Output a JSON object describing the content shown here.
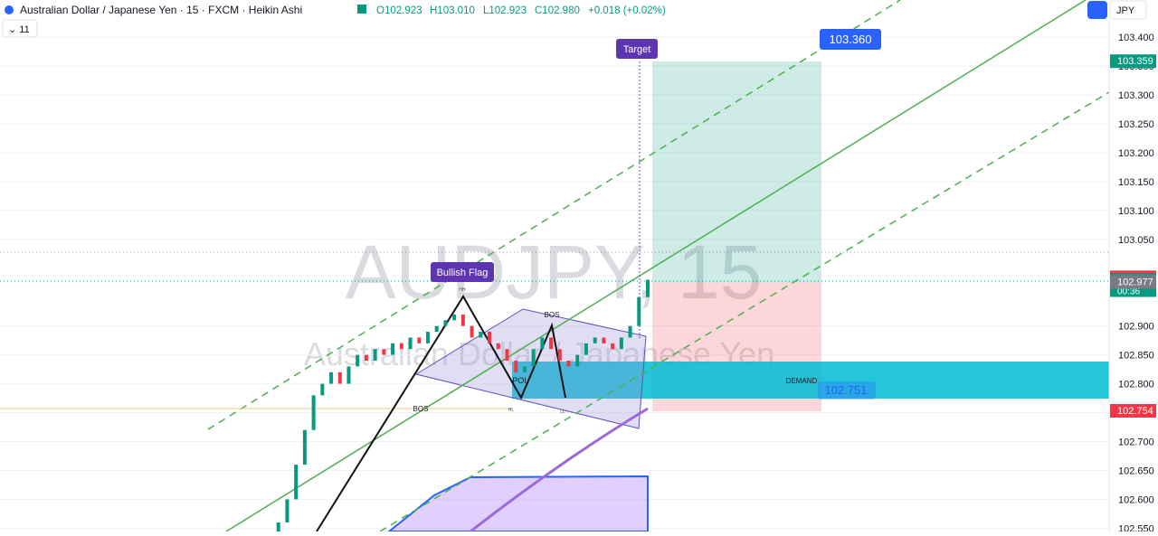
{
  "header": {
    "symbol": "Australian Dollar / Japanese Yen · 15 · FXCM · Heikin Ashi",
    "open": "O102.923",
    "high": "H103.010",
    "low": "L102.923",
    "close": "C102.980",
    "change": "+0.018 (+0.02%)",
    "indicators": "11",
    "currency": "JPY"
  },
  "watermark": {
    "ticker": "AUDJPY, 15",
    "name": "Australian Dollar / Japanese Yen"
  },
  "annotations": {
    "target": "Target",
    "target_price": "103.360",
    "flag": "Bullish Flag",
    "bos_1": "BOS",
    "bos_2": "BOS",
    "poi": "POI",
    "demand": "DEMAND",
    "demand_price": "102.751",
    "hh": "HH",
    "hl_1": "HL",
    "hl_2": "LL"
  },
  "chart": {
    "type": "candlestick",
    "ylim": [
      102.5444,
      103.4
    ],
    "yticks": [
      {
        "value": 103.4,
        "label": "103.400"
      },
      {
        "value": 103.35,
        "label": "103.350"
      },
      {
        "value": 103.3,
        "label": "103.300"
      },
      {
        "value": 103.25,
        "label": "103.250"
      },
      {
        "value": 103.2,
        "label": "103.200"
      },
      {
        "value": 103.15,
        "label": "103.150"
      },
      {
        "value": 103.1,
        "label": "103.100"
      },
      {
        "value": 103.05,
        "label": "103.050"
      },
      {
        "value": 102.9,
        "label": "102.900"
      },
      {
        "value": 102.85,
        "label": "102.850"
      },
      {
        "value": 102.8,
        "label": "102.800"
      },
      {
        "value": 102.75,
        "label": "102.750"
      },
      {
        "value": 102.7,
        "label": "102.700"
      },
      {
        "value": 102.65,
        "label": "102.650"
      },
      {
        "value": 102.6,
        "label": "102.600"
      },
      {
        "value": 102.55,
        "label": "102.550"
      }
    ],
    "price_labels": [
      {
        "value": 103.359,
        "label": "103.359",
        "color": "#089981"
      },
      {
        "value": 102.985,
        "label": "102.985",
        "color": "#f23645"
      },
      {
        "value": 102.98,
        "label": "102.980",
        "color": "#089981",
        "sub": "00:36"
      },
      {
        "value": 102.977,
        "label": "102.977",
        "color": "#787b86"
      },
      {
        "value": 102.754,
        "label": "102.754",
        "color": "#f23645"
      }
    ],
    "up_color": "#089981",
    "down_color": "#f23645",
    "candles": [
      [
        102.53,
        102.54
      ],
      [
        102.54,
        102.56
      ],
      [
        102.56,
        102.6
      ],
      [
        102.6,
        102.66
      ],
      [
        102.66,
        102.72
      ],
      [
        102.72,
        102.78
      ],
      [
        102.78,
        102.8
      ],
      [
        102.8,
        102.82
      ],
      [
        102.82,
        102.8
      ],
      [
        102.8,
        102.83
      ],
      [
        102.83,
        102.85
      ],
      [
        102.85,
        102.84
      ],
      [
        102.84,
        102.86
      ],
      [
        102.86,
        102.85
      ],
      [
        102.85,
        102.87
      ],
      [
        102.87,
        102.86
      ],
      [
        102.86,
        102.88
      ],
      [
        102.88,
        102.87
      ],
      [
        102.87,
        102.89
      ],
      [
        102.89,
        102.9
      ],
      [
        102.9,
        102.91
      ],
      [
        102.91,
        102.92
      ],
      [
        102.92,
        102.9
      ],
      [
        102.9,
        102.88
      ],
      [
        102.88,
        102.89
      ],
      [
        102.89,
        102.87
      ],
      [
        102.87,
        102.86
      ],
      [
        102.86,
        102.84
      ],
      [
        102.84,
        102.82
      ],
      [
        102.82,
        102.83
      ],
      [
        102.83,
        102.86
      ],
      [
        102.86,
        102.88
      ],
      [
        102.88,
        102.86
      ],
      [
        102.86,
        102.84
      ],
      [
        102.84,
        102.83
      ],
      [
        102.83,
        102.85
      ],
      [
        102.85,
        102.87
      ],
      [
        102.87,
        102.88
      ],
      [
        102.88,
        102.87
      ],
      [
        102.87,
        102.86
      ],
      [
        102.86,
        102.88
      ],
      [
        102.88,
        102.9
      ],
      [
        102.9,
        102.95
      ],
      [
        102.95,
        102.98
      ]
    ]
  }
}
